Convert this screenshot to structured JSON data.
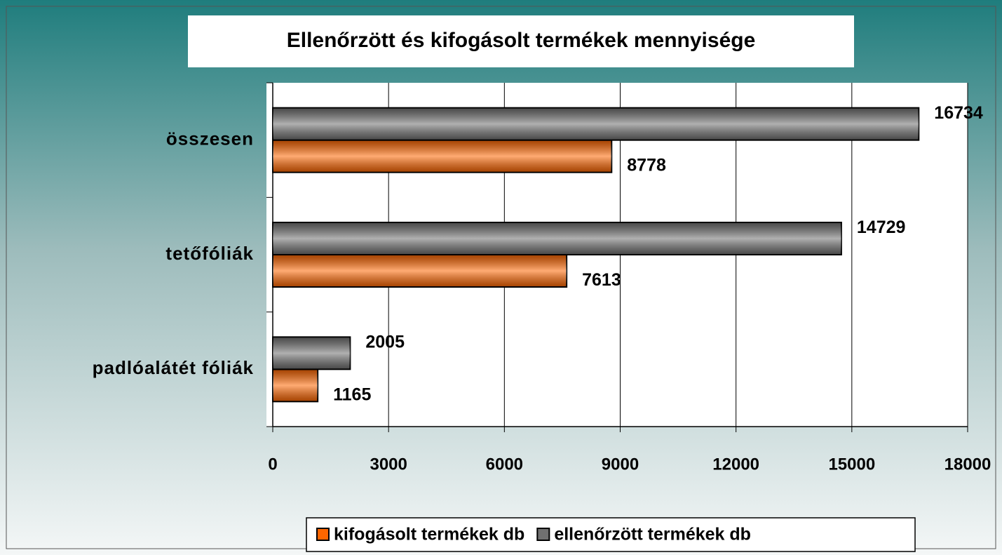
{
  "chart_data": {
    "type": "barh",
    "title": "Ellenőrzött és kifogásolt termékek mennyisége",
    "categories": [
      "összesen",
      "tetőfóliák",
      "padlóalátét fóliák"
    ],
    "series": [
      {
        "name": "kifogásolt termékek db",
        "color": "#ff6600",
        "values": [
          8778,
          7613,
          1165
        ]
      },
      {
        "name": "ellenőrzött termékek db",
        "color": "#707070",
        "values": [
          16734,
          14729,
          2005
        ]
      }
    ],
    "xlim": [
      0,
      18000
    ],
    "xticks": [
      0,
      3000,
      6000,
      9000,
      12000,
      15000,
      18000
    ],
    "grid": true
  }
}
